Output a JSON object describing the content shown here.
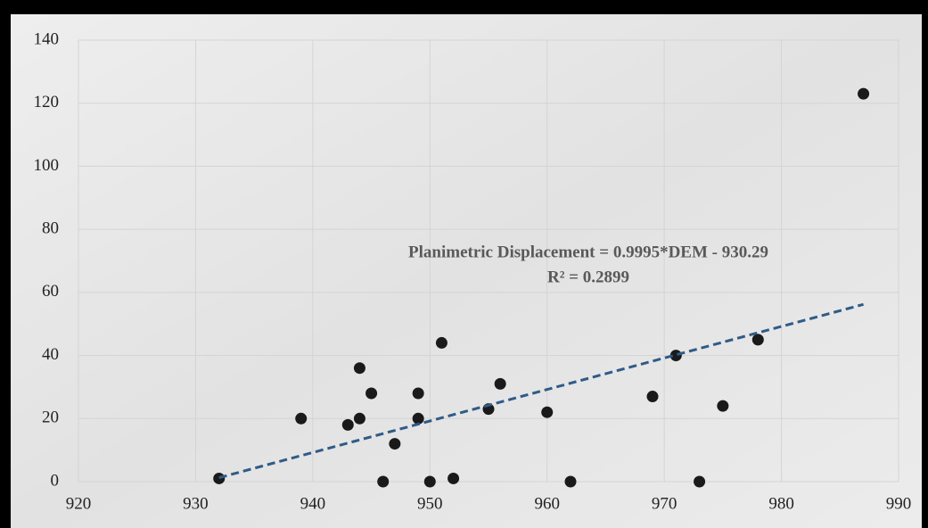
{
  "chart_data": {
    "type": "scatter",
    "annotations": [
      "Planimetric Displacement = 0.9995*DEM - 930.29",
      "R² = 0.2899"
    ],
    "x": [
      932,
      939,
      943,
      944,
      944,
      945,
      946,
      947,
      949,
      949,
      950,
      951,
      952,
      955,
      956,
      960,
      962,
      969,
      971,
      973,
      975,
      978,
      987
    ],
    "values": [
      1,
      20,
      18,
      36,
      20,
      28,
      0,
      12,
      28,
      20,
      0,
      44,
      1,
      23,
      31,
      22,
      0,
      27,
      40,
      0,
      24,
      45,
      123
    ],
    "color": "#1a1a1a",
    "trendline": {
      "x": [
        932,
        987
      ],
      "values": [
        1.24,
        56.2
      ],
      "color": "#2e5b88"
    },
    "xlim": [
      920,
      990
    ],
    "xticks": [
      920,
      930,
      940,
      950,
      960,
      970,
      980,
      990
    ],
    "ylim": [
      0,
      140
    ],
    "yticks": [
      0,
      20,
      40,
      60,
      80,
      100,
      120,
      140
    ],
    "grid": true
  }
}
